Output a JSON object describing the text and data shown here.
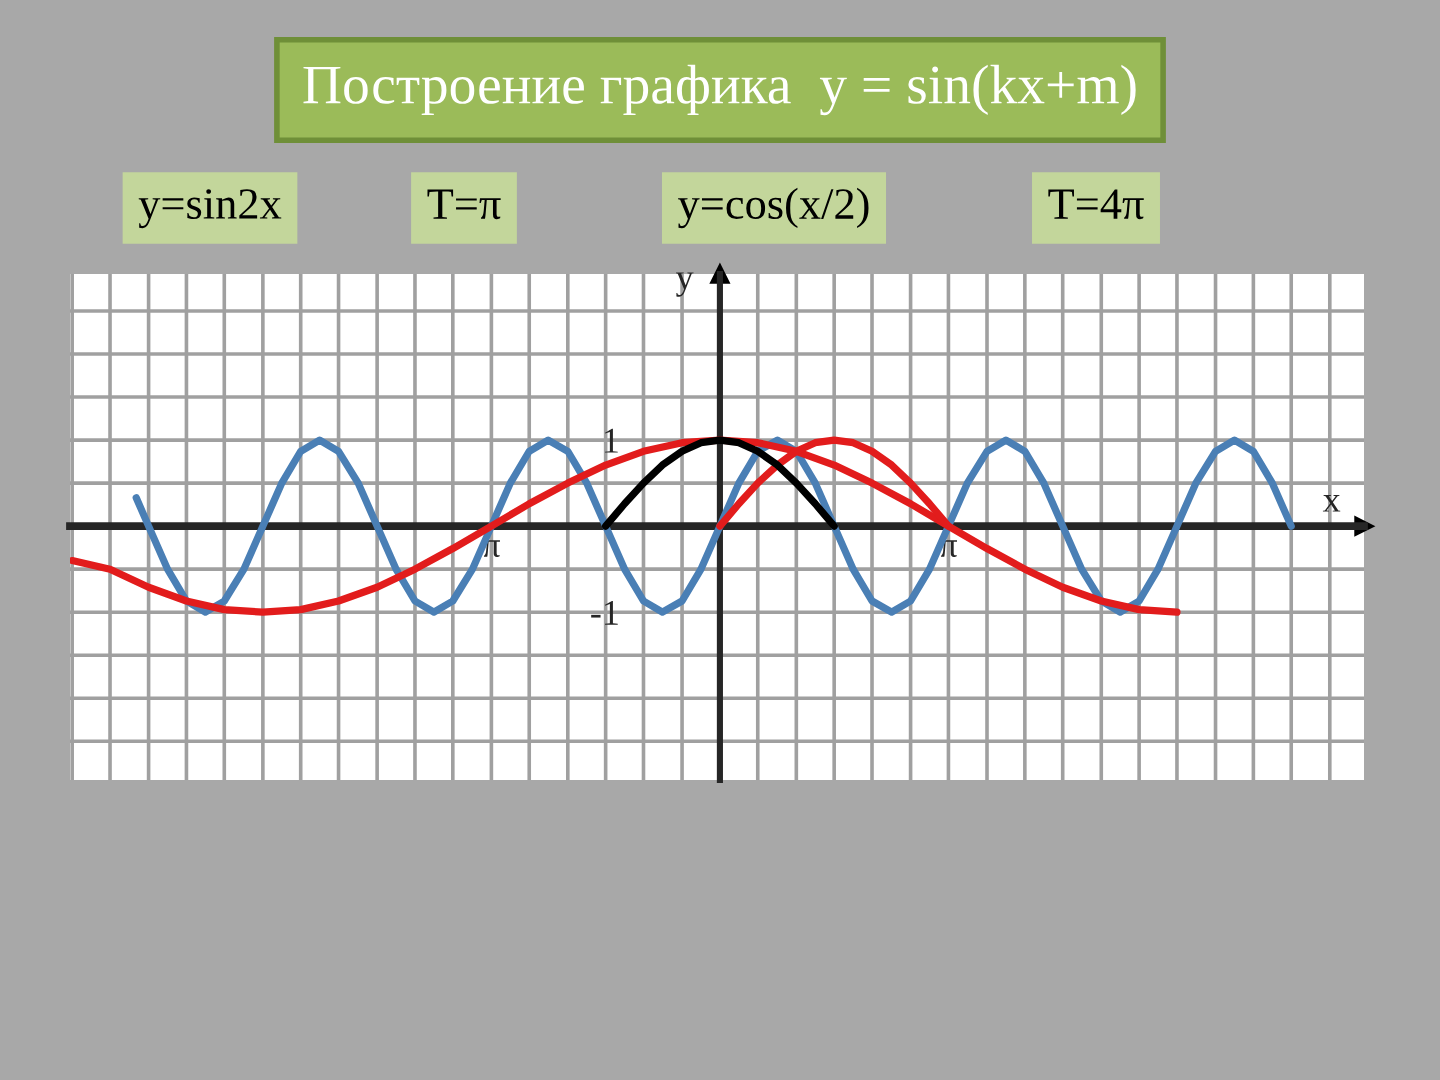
{
  "chart_data": {
    "type": "line",
    "title": "Построение графика  y = sin(kx+m)",
    "annotations": [
      "y=sin2x",
      "T=π",
      "y=cos(x/2)",
      "T=4π"
    ],
    "xlabel": "x",
    "ylabel": "y",
    "series": [
      {
        "color": "#4a7fb5",
        "x": [
          -8.02,
          -7.85,
          -7.59,
          -7.33,
          -7.07,
          -6.81,
          -6.54,
          -6.28,
          -6.02,
          -5.76,
          -5.5,
          -5.24,
          -4.97,
          -4.71,
          -4.45,
          -4.19,
          -3.93,
          -3.67,
          -3.4,
          -3.14,
          -2.88,
          -2.62,
          -2.36,
          -2.09,
          -1.83,
          -1.57,
          -1.31,
          -1.05,
          -0.79,
          -0.52,
          -0.26,
          0,
          0.26,
          0.52,
          0.79,
          1.05,
          1.31,
          1.57,
          1.83,
          2.09,
          2.36,
          2.62,
          2.88,
          3.14,
          3.4,
          3.67,
          3.93,
          4.19,
          4.45,
          4.71,
          4.97,
          5.24,
          5.5,
          5.76,
          6.02,
          6.28,
          6.54,
          6.81,
          7.07,
          7.33,
          7.59,
          7.85
        ],
        "values": [
          0.33,
          0,
          -0.5,
          -0.87,
          -1,
          -0.87,
          -0.5,
          0,
          0.5,
          0.87,
          1,
          0.87,
          0.5,
          0,
          -0.5,
          -0.87,
          -1,
          -0.87,
          -0.5,
          0,
          0.5,
          0.87,
          1,
          0.87,
          0.5,
          0,
          -0.5,
          -0.87,
          -1,
          -0.87,
          -0.5,
          0,
          0.5,
          0.87,
          1,
          0.87,
          0.5,
          0,
          -0.5,
          -0.87,
          -1,
          -0.87,
          -0.5,
          0,
          0.5,
          0.87,
          1,
          0.87,
          0.5,
          0,
          -0.5,
          -0.87,
          -1,
          -0.87,
          -0.5,
          0,
          0.5,
          0.87,
          1,
          0.87,
          0.5,
          0
        ]
      },
      {
        "color": "#e21c1c",
        "x": [
          -8.9,
          -8.38,
          -7.85,
          -7.33,
          -6.81,
          -6.28,
          -5.76,
          -5.24,
          -4.71,
          -4.19,
          -3.67,
          -3.14,
          -2.62,
          -2.09,
          -1.57,
          -1.05,
          -0.52,
          0,
          0.52,
          1.05,
          1.57,
          2.09,
          2.62,
          3.14,
          3.67,
          4.19,
          4.71,
          5.24,
          5.76,
          6.28
        ],
        "values": [
          -0.4,
          -0.5,
          -0.71,
          -0.87,
          -0.97,
          -1,
          -0.97,
          -0.87,
          -0.71,
          -0.5,
          -0.26,
          0,
          0.26,
          0.5,
          0.71,
          0.87,
          0.97,
          1,
          0.97,
          0.87,
          0.71,
          0.5,
          0.26,
          0,
          -0.26,
          -0.5,
          -0.71,
          -0.87,
          -0.97,
          -1
        ]
      },
      {
        "color": "#e21c1c",
        "x": [
          0,
          0.26,
          0.52,
          0.79,
          1.05,
          1.31,
          1.57,
          1.83,
          2.09,
          2.36,
          2.62,
          2.88,
          3.14
        ],
        "values": [
          0,
          0.26,
          0.5,
          0.71,
          0.87,
          0.97,
          1,
          0.97,
          0.87,
          0.71,
          0.5,
          0.26,
          0
        ]
      },
      {
        "color": "#000000",
        "x": [
          -1.57,
          -1.31,
          -1.05,
          -0.79,
          -0.52,
          -0.26,
          0,
          0.26,
          0.52,
          0.79,
          1.05,
          1.31,
          1.57
        ],
        "values": [
          0,
          0.26,
          0.5,
          0.71,
          0.87,
          0.97,
          1,
          0.97,
          0.87,
          0.71,
          0.5,
          0.26,
          0
        ]
      }
    ],
    "xlim": [
      -8.93,
      8.85
    ],
    "ylim": [
      -2.95,
      2.93
    ],
    "xticks": [
      {
        "value": -8.9,
        "label": null
      },
      {
        "value": -8.38,
        "label": null
      },
      {
        "value": -7.85,
        "label": null
      },
      {
        "value": -7.33,
        "label": null
      },
      {
        "value": -6.81,
        "label": null
      },
      {
        "value": -6.28,
        "label": null
      },
      {
        "value": -5.76,
        "label": null
      },
      {
        "value": -5.24,
        "label": null
      },
      {
        "value": -4.71,
        "label": null
      },
      {
        "value": -4.19,
        "label": null
      },
      {
        "value": -3.67,
        "label": null
      },
      {
        "value": -3.14,
        "label": "π"
      },
      {
        "value": -2.62,
        "label": null
      },
      {
        "value": -2.09,
        "label": null
      },
      {
        "value": -1.57,
        "label": null
      },
      {
        "value": -1.05,
        "label": null
      },
      {
        "value": -0.52,
        "label": null
      },
      {
        "value": 0,
        "label": null
      },
      {
        "value": 0.52,
        "label": null
      },
      {
        "value": 1.05,
        "label": null
      },
      {
        "value": 1.57,
        "label": null
      },
      {
        "value": 2.09,
        "label": null
      },
      {
        "value": 2.62,
        "label": null
      },
      {
        "value": 3.14,
        "label": "π"
      },
      {
        "value": 3.67,
        "label": null
      },
      {
        "value": 4.19,
        "label": null
      },
      {
        "value": 4.71,
        "label": null
      },
      {
        "value": 5.24,
        "label": null
      },
      {
        "value": 5.76,
        "label": null
      },
      {
        "value": 6.28,
        "label": null
      },
      {
        "value": 6.81,
        "label": null
      },
      {
        "value": 7.33,
        "label": null
      },
      {
        "value": 7.85,
        "label": null
      },
      {
        "value": 8.38,
        "label": null
      }
    ],
    "yticks": [
      {
        "value": -2.5,
        "label": null
      },
      {
        "value": -2,
        "label": null
      },
      {
        "value": -1.5,
        "label": null
      },
      {
        "value": -1,
        "label": "-1"
      },
      {
        "value": -0.5,
        "label": null
      },
      {
        "value": 0,
        "label": null
      },
      {
        "value": 0.5,
        "label": null
      },
      {
        "value": 1,
        "label": "1"
      },
      {
        "value": 1.5,
        "label": null
      },
      {
        "value": 2,
        "label": null
      },
      {
        "value": 2.5,
        "label": null
      }
    ],
    "grid": true,
    "legend": false,
    "marker": "none",
    "line_style": "solid"
  }
}
